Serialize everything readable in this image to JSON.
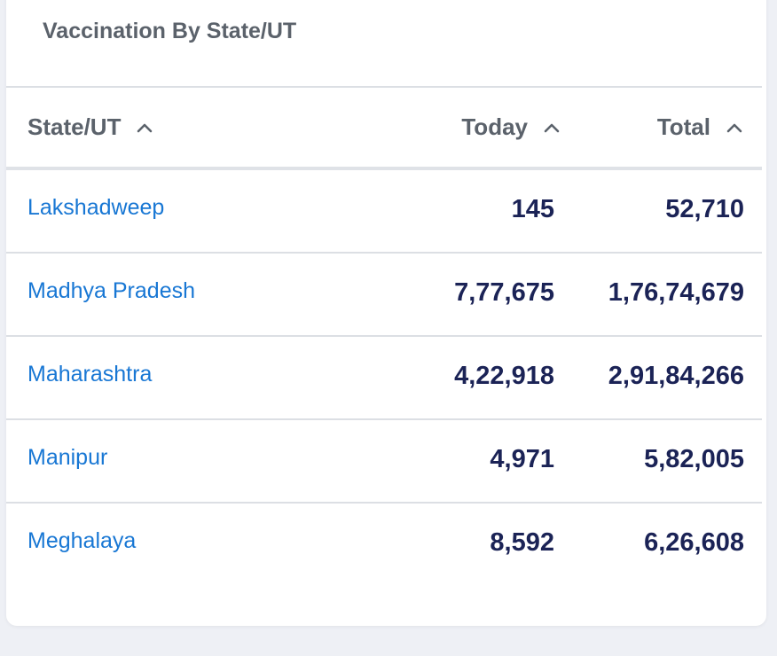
{
  "card": {
    "title": "Vaccination By State/UT"
  },
  "table": {
    "headers": {
      "state": "State/UT",
      "today": "Today",
      "total": "Total"
    },
    "sort_icon": "chevron-up-icon",
    "rows": [
      {
        "state": "Lakshadweep",
        "today": "145",
        "total": "52,710"
      },
      {
        "state": "Madhya Pradesh",
        "today": "7,77,675",
        "total": "1,76,74,679"
      },
      {
        "state": "Maharashtra",
        "today": "4,22,918",
        "total": "2,91,84,266"
      },
      {
        "state": "Manipur",
        "today": "4,971",
        "total": "5,82,005"
      },
      {
        "state": "Meghalaya",
        "today": "8,592",
        "total": "6,26,608"
      }
    ]
  },
  "colors": {
    "link": "#1877d4",
    "number": "#1b2356",
    "header": "#5b626b",
    "background": "#eef0f5"
  }
}
